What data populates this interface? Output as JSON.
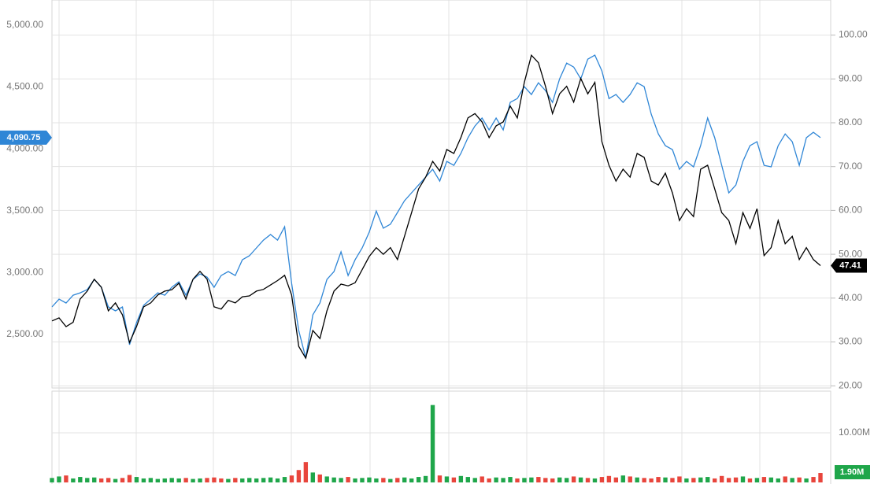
{
  "chart_data": [
    {
      "type": "line",
      "ylim": [
        2068,
        5203
      ],
      "yticks": [
        {
          "value": 2500,
          "label": "2,500.00"
        },
        {
          "value": 3000,
          "label": "3,000.00"
        },
        {
          "value": 3500,
          "label": "3,500.00"
        },
        {
          "value": 4000,
          "label": "4,000.00"
        },
        {
          "value": 4500,
          "label": "4,500.00"
        },
        {
          "value": 5000,
          "label": "5,000.00"
        }
      ],
      "y2lim": [
        19.5,
        108
      ],
      "y2ticks": [
        {
          "value": 20,
          "label": "20.00"
        },
        {
          "value": 30,
          "label": "30.00"
        },
        {
          "value": 40,
          "label": "40.00"
        },
        {
          "value": 50,
          "label": "50.00"
        },
        {
          "value": 60,
          "label": "60.00"
        },
        {
          "value": 70,
          "label": "70.00"
        },
        {
          "value": 80,
          "label": "80.00"
        },
        {
          "value": 90,
          "label": "90.00"
        },
        {
          "value": 100,
          "label": "100.00"
        }
      ],
      "grid": true,
      "series": [
        {
          "color": "#2f86d6",
          "axis": "y",
          "last_label": "4,090.75",
          "values": [
            2723,
            2786,
            2755,
            2818,
            2837,
            2863,
            2945,
            2882,
            2723,
            2691,
            2723,
            2418,
            2596,
            2736,
            2786,
            2837,
            2818,
            2882,
            2926,
            2818,
            2945,
            2990,
            2964,
            2882,
            2977,
            3009,
            2977,
            3104,
            3136,
            3200,
            3263,
            3308,
            3263,
            3371,
            2913,
            2532,
            2310,
            2659,
            2755,
            2945,
            3009,
            3168,
            2977,
            3104,
            3200,
            3327,
            3498,
            3359,
            3391,
            3486,
            3581,
            3645,
            3708,
            3772,
            3835,
            3740,
            3899,
            3867,
            3963,
            4090,
            4185,
            4249,
            4153,
            4249,
            4153,
            4376,
            4407,
            4503,
            4439,
            4534,
            4471,
            4376,
            4566,
            4693,
            4661,
            4566,
            4725,
            4757,
            4630,
            4407,
            4439,
            4376,
            4439,
            4534,
            4503,
            4280,
            4121,
            4026,
            3994,
            3835,
            3899,
            3855,
            4026,
            4249,
            4090,
            3867,
            3645,
            3708,
            3899,
            4026,
            4058,
            3867,
            3855,
            4026,
            4121,
            4058,
            3867,
            4090,
            4134,
            4090.75
          ]
        },
        {
          "color": "#000000",
          "axis": "y2",
          "values": [
            34.8,
            35.5,
            33.5,
            34.5,
            39.8,
            41.6,
            44.3,
            42.5,
            37.1,
            38.9,
            36.2,
            29.9,
            33.5,
            38.0,
            38.9,
            40.7,
            41.6,
            41.9,
            43.4,
            39.8,
            44.3,
            46.1,
            44.3,
            38.0,
            37.5,
            39.5,
            38.9,
            40.3,
            40.5,
            41.6,
            42.0,
            43.0,
            44.0,
            45.2,
            40.7,
            29.0,
            26.3,
            32.6,
            30.8,
            37.1,
            41.6,
            43.2,
            42.8,
            43.5,
            46.5,
            49.5,
            51.5,
            50.0,
            51.5,
            48.8,
            54.1,
            59.5,
            64.9,
            67.6,
            71.2,
            69.0,
            73.9,
            73.0,
            76.6,
            81.1,
            82.1,
            80.2,
            76.6,
            79.3,
            80.2,
            83.8,
            81.1,
            89.2,
            95.4,
            93.7,
            88.3,
            82.1,
            86.6,
            88.3,
            84.7,
            90.1,
            86.6,
            89.2,
            75.7,
            70.3,
            66.7,
            69.4,
            67.6,
            73.0,
            72.1,
            66.7,
            65.8,
            68.5,
            64.0,
            57.7,
            60.4,
            58.6,
            69.4,
            70.3,
            64.9,
            59.5,
            57.7,
            52.4,
            59.5,
            55.9,
            60.4,
            49.7,
            51.5,
            57.7,
            52.4,
            54.1,
            48.8,
            51.5,
            48.8,
            47.41
          ]
        }
      ]
    },
    {
      "type": "bar",
      "ylim": [
        0,
        18.4
      ],
      "yticks": [
        {
          "value": 10,
          "label": "10.00M"
        }
      ],
      "grid": true,
      "up_color": "#1fa64a",
      "down_color": "#e8453c",
      "last_label": "1.90M",
      "values": [
        0.9,
        1.2,
        1.4,
        0.8,
        1.1,
        0.9,
        1.0,
        0.8,
        0.9,
        0.7,
        0.9,
        1.5,
        1.1,
        0.8,
        0.9,
        0.7,
        0.8,
        0.9,
        0.8,
        0.9,
        0.7,
        0.8,
        0.9,
        1.0,
        0.8,
        0.7,
        0.9,
        0.8,
        0.9,
        0.8,
        0.9,
        1.0,
        0.8,
        1.1,
        1.4,
        2.5,
        4.1,
        2.0,
        1.6,
        1.2,
        1.0,
        0.9,
        1.1,
        0.8,
        0.9,
        1.0,
        0.8,
        0.9,
        0.7,
        0.9,
        1.0,
        0.8,
        1.1,
        1.3,
        15.6,
        1.4,
        1.2,
        1.0,
        1.3,
        1.1,
        0.9,
        1.2,
        0.8,
        1.0,
        0.9,
        1.1,
        0.8,
        0.9,
        1.0,
        1.1,
        0.9,
        0.8,
        1.0,
        0.9,
        1.2,
        1.0,
        0.9,
        0.8,
        1.1,
        1.3,
        1.0,
        1.4,
        1.2,
        1.0,
        0.9,
        0.8,
        1.1,
        1.0,
        0.9,
        1.2,
        0.8,
        0.9,
        1.0,
        1.1,
        0.8,
        1.3,
        0.9,
        1.0,
        1.2,
        0.8,
        0.9,
        1.1,
        1.0,
        0.8,
        1.2,
        0.9,
        1.0,
        0.8,
        1.1,
        1.9
      ]
    }
  ]
}
